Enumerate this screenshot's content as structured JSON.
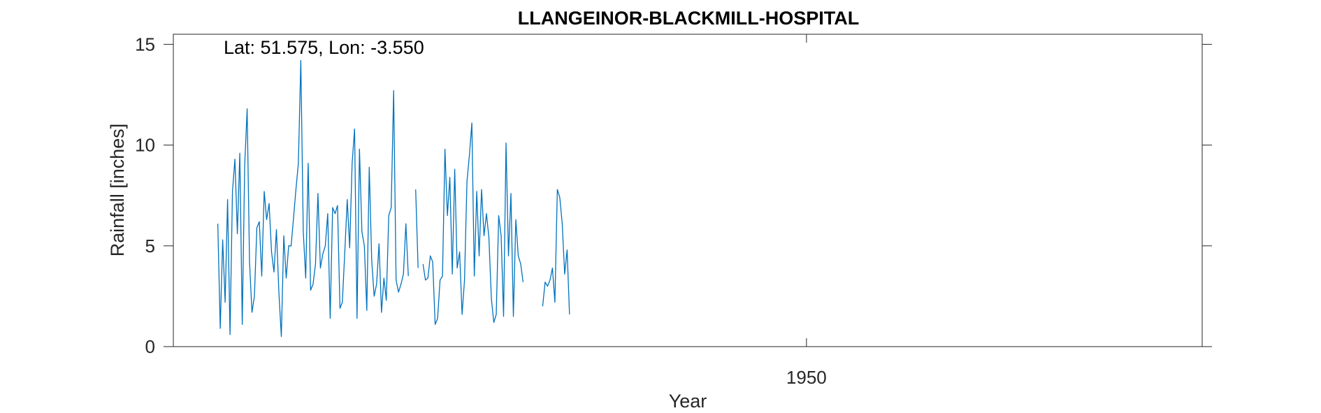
{
  "chart_data": {
    "type": "line",
    "title": "LLANGEINOR-BLACKMILL-HOSPITAL",
    "annotation": "Lat: 51.575, Lon: -3.550",
    "xlabel": "Year",
    "ylabel": "Rainfall [inches]",
    "xlim": [
      1928.4,
      1963.5
    ],
    "ylim": [
      0,
      15.5
    ],
    "x_ticks": [
      1950
    ],
    "x_tick_labels": [
      "1950"
    ],
    "y_ticks": [
      0,
      5,
      10,
      15
    ],
    "y_tick_labels": [
      "0",
      "5",
      "10",
      "15"
    ],
    "grid": false,
    "line_color": "#0072bd",
    "series": [
      {
        "start": 1929.917,
        "step": 0.08333,
        "values": [
          6.1,
          0.9,
          5.3,
          2.2,
          7.3,
          0.6,
          7.7,
          9.3,
          5.6,
          9.6,
          1.1,
          9.0,
          11.8,
          4.2,
          1.7,
          2.5,
          5.9,
          6.2,
          3.5,
          7.7,
          6.3,
          7.1,
          4.7,
          3.7,
          5.8,
          2.7,
          0.5,
          5.5,
          3.4,
          5.0,
          5.0,
          6.4,
          7.8,
          9.1,
          14.2,
          5.7,
          3.4,
          9.1,
          2.8,
          3.1,
          4.1,
          7.6,
          3.9,
          4.6,
          5.0,
          6.6,
          1.4,
          6.9,
          6.6,
          7.0,
          1.9,
          2.2,
          4.7,
          7.3,
          4.9,
          9.1,
          10.8,
          1.4,
          9.8,
          5.7,
          5.0,
          1.8,
          8.9,
          4.3,
          2.5,
          3.1,
          5.1,
          1.7,
          3.4,
          2.3,
          6.5,
          6.9,
          12.7,
          3.3,
          2.7,
          3.1,
          3.6,
          6.1,
          3.5,
          null,
          null,
          7.8,
          3.9,
          null,
          4.1,
          3.3,
          3.4,
          4.5,
          4.2,
          1.1,
          1.4,
          3.3,
          3.5,
          9.8,
          6.5,
          8.4,
          3.6,
          8.8,
          3.9,
          4.7,
          1.6,
          3.3,
          8.2,
          9.5,
          11.1,
          3.5,
          7.7,
          4.5,
          7.8,
          5.5,
          6.6,
          5.4,
          2.4,
          1.2,
          1.6,
          6.5,
          5.5,
          1.5,
          10.1,
          4.5,
          7.6,
          1.5,
          6.3,
          4.5,
          4.1,
          3.2,
          null,
          null,
          null,
          null,
          null,
          null,
          null,
          2.0,
          3.2,
          3.0,
          3.3,
          3.9,
          2.2,
          7.8,
          7.4,
          6.1,
          3.6,
          4.8,
          1.6
        ]
      }
    ]
  }
}
